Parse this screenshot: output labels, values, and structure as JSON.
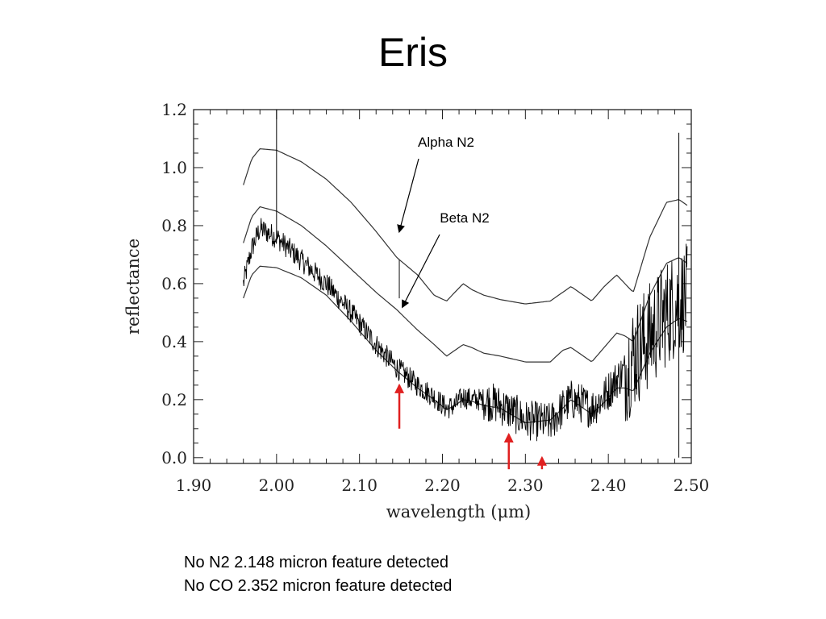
{
  "title": "Eris",
  "notes": [
    "No N2 2.148 micron feature detected",
    "No CO 2.352 micron feature detected"
  ],
  "chart_data": {
    "type": "line",
    "xlabel": "wavelength (μm)",
    "ylabel": "reflectance",
    "xlim": [
      1.9,
      2.5
    ],
    "ylim": [
      -0.02,
      1.2
    ],
    "xticks": [
      "1.90",
      "2.00",
      "2.10",
      "2.20",
      "2.30",
      "2.40",
      "2.50"
    ],
    "yticks": [
      "0.0",
      "0.2",
      "0.4",
      "0.6",
      "0.8",
      "1.0",
      "1.2"
    ],
    "grid": false,
    "series": [
      {
        "style": "model",
        "x": [
          1.96,
          1.97,
          1.98,
          2.0,
          2.03,
          2.06,
          2.09,
          2.12,
          2.145,
          2.17,
          2.19,
          2.205,
          2.215,
          2.225,
          2.235,
          2.25,
          2.27,
          2.3,
          2.33,
          2.345,
          2.355,
          2.365,
          2.38,
          2.395,
          2.41,
          2.42,
          2.43,
          2.45,
          2.47,
          2.485,
          2.495
        ],
        "y": [
          0.94,
          1.03,
          1.065,
          1.06,
          1.02,
          0.96,
          0.88,
          0.78,
          0.69,
          0.63,
          0.56,
          0.54,
          0.57,
          0.6,
          0.58,
          0.56,
          0.545,
          0.53,
          0.54,
          0.57,
          0.59,
          0.57,
          0.54,
          0.59,
          0.63,
          0.6,
          0.57,
          0.76,
          0.88,
          0.89,
          0.87
        ]
      },
      {
        "style": "model",
        "x": [
          1.96,
          1.97,
          1.98,
          2.0,
          2.03,
          2.06,
          2.09,
          2.12,
          2.145,
          2.17,
          2.19,
          2.205,
          2.215,
          2.225,
          2.235,
          2.25,
          2.27,
          2.3,
          2.33,
          2.345,
          2.355,
          2.365,
          2.38,
          2.395,
          2.41,
          2.42,
          2.43,
          2.45,
          2.47,
          2.485,
          2.495
        ],
        "y": [
          0.74,
          0.83,
          0.865,
          0.85,
          0.8,
          0.73,
          0.65,
          0.57,
          0.51,
          0.44,
          0.39,
          0.35,
          0.37,
          0.39,
          0.38,
          0.36,
          0.35,
          0.33,
          0.33,
          0.37,
          0.38,
          0.36,
          0.33,
          0.38,
          0.43,
          0.42,
          0.4,
          0.56,
          0.67,
          0.69,
          0.67
        ]
      },
      {
        "style": "model",
        "x": [
          1.96,
          1.97,
          1.98,
          2.0,
          2.03,
          2.06,
          2.09,
          2.12,
          2.145,
          2.17,
          2.19,
          2.205,
          2.215,
          2.225,
          2.235,
          2.25,
          2.27,
          2.3,
          2.33,
          2.345,
          2.355,
          2.365,
          2.38,
          2.395,
          2.41,
          2.42,
          2.43,
          2.45,
          2.47,
          2.485,
          2.495
        ],
        "y": [
          0.55,
          0.63,
          0.66,
          0.655,
          0.62,
          0.56,
          0.47,
          0.37,
          0.3,
          0.24,
          0.2,
          0.165,
          0.18,
          0.2,
          0.195,
          0.18,
          0.17,
          0.12,
          0.13,
          0.17,
          0.2,
          0.18,
          0.15,
          0.19,
          0.24,
          0.24,
          0.23,
          0.36,
          0.45,
          0.48,
          0.47
        ]
      },
      {
        "style": "observed",
        "x": [
          1.96,
          1.97,
          1.98,
          2.0,
          2.03,
          2.06,
          2.09,
          2.12,
          2.145,
          2.17,
          2.19,
          2.205,
          2.215,
          2.225,
          2.235,
          2.25,
          2.27,
          2.3,
          2.33,
          2.345,
          2.355,
          2.365,
          2.38,
          2.395,
          2.41,
          2.42,
          2.43,
          2.45,
          2.47,
          2.485,
          2.495
        ],
        "y": [
          0.6,
          0.72,
          0.79,
          0.76,
          0.68,
          0.6,
          0.5,
          0.39,
          0.31,
          0.25,
          0.21,
          0.17,
          0.18,
          0.21,
          0.2,
          0.2,
          0.18,
          0.13,
          0.12,
          0.17,
          0.2,
          0.19,
          0.17,
          0.21,
          0.27,
          0.3,
          0.35,
          0.42,
          0.5,
          0.54,
          0.55
        ]
      }
    ],
    "annotations": [
      {
        "text": "Alpha N2",
        "arrow_to": [
          2.148,
          0.78
        ]
      },
      {
        "text": "Beta N2",
        "arrow_to": [
          2.148,
          0.52
        ]
      }
    ],
    "markers": [
      {
        "x": 2.148,
        "y_from": 0.1,
        "y_to": 0.25,
        "color": "#e02020"
      },
      {
        "x": 2.28,
        "y_from": -0.04,
        "y_to": 0.08,
        "color": "#e02020"
      },
      {
        "x": 2.32,
        "y_from": -0.04,
        "y_to": 0.0,
        "color": "#e02020"
      }
    ]
  }
}
